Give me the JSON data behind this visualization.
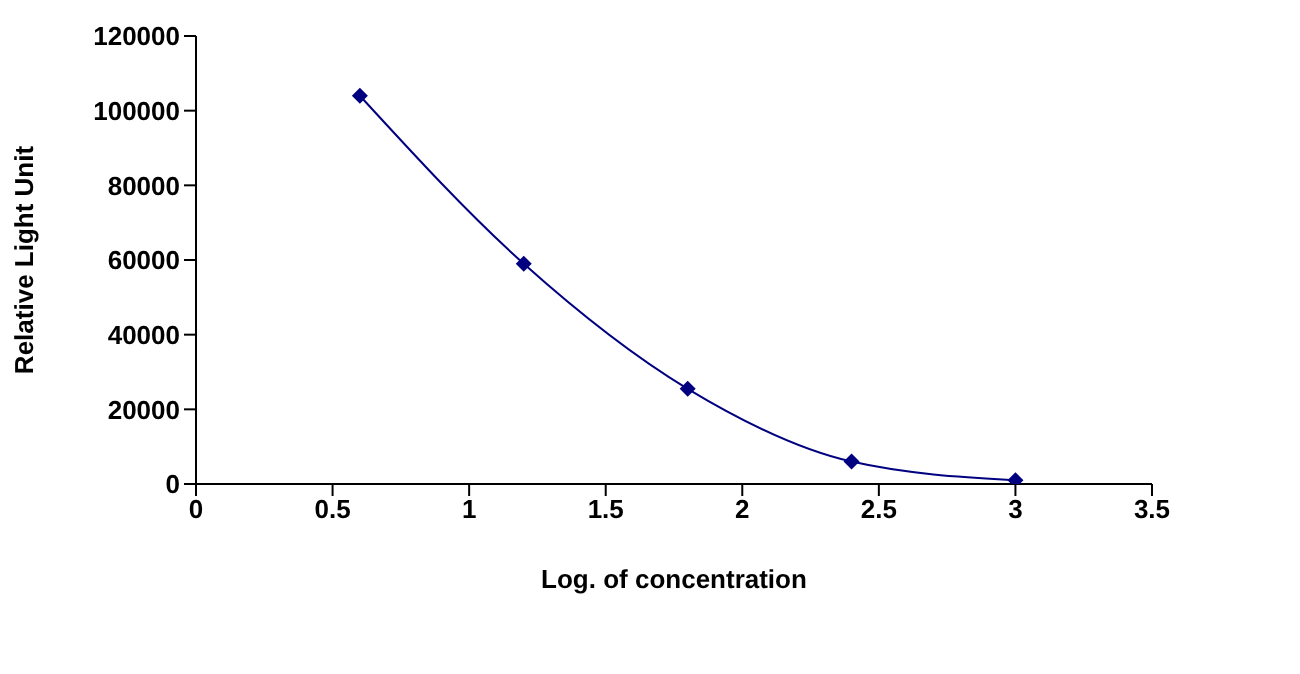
{
  "chart_data": {
    "type": "line",
    "xlabel": "Log. of concentration",
    "ylabel": "Relative Light Unit",
    "x": [
      0.6,
      1.2,
      1.8,
      2.4,
      3.0
    ],
    "series": [
      {
        "color": "#000080",
        "values": [
          104000,
          59000,
          25500,
          6000,
          1000
        ]
      }
    ],
    "xlim": [
      0,
      3.5
    ],
    "xticks": [
      0,
      0.5,
      1,
      1.5,
      2,
      2.5,
      3,
      3.5
    ],
    "ylim": [
      0,
      120000
    ],
    "yticks": [
      0,
      20000,
      40000,
      60000,
      80000,
      100000,
      120000
    ],
    "grid": false,
    "legend": false,
    "marker": "diamond",
    "line_style": "solid"
  }
}
